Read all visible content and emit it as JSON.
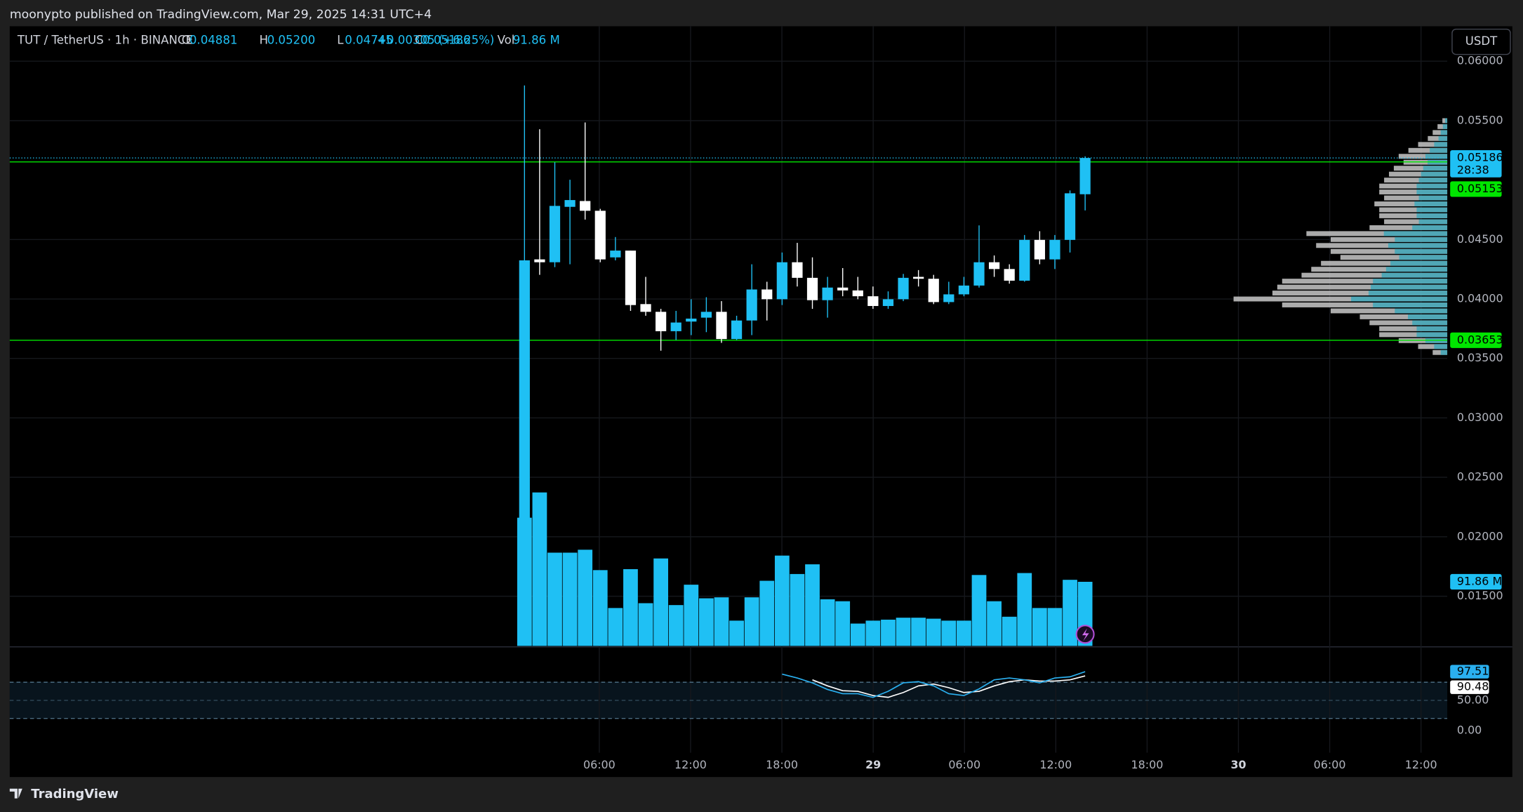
{
  "page": {
    "publisher": "moonypto published on TradingView.com, Mar 29, 2025 14:31 UTC+4",
    "brand": "TradingView",
    "currency_button": "USDT"
  },
  "chart_data": {
    "type": "candlestick",
    "symbol": "TUT / TetherUS · 1h · BINANCE",
    "ohlc_labels": [
      {
        "key": "O",
        "label": "0.04881"
      },
      {
        "key": "H",
        "label": "0.05200"
      },
      {
        "key": "L",
        "label": "0.04745"
      },
      {
        "key": "C",
        "label": "0.05186"
      }
    ],
    "change_label": "+0.00305 (+6.25%)",
    "volume_key": "Vol",
    "volume_label": "91.86 M",
    "last_price_label": "0.05186",
    "countdown": "28:38",
    "up_color": "#1fc0f4",
    "down_color": "#ffffff",
    "open": [
      0.011,
      0.04333,
      0.04309,
      0.04775,
      0.04824,
      0.04742,
      0.0435,
      0.04407,
      0.03957,
      0.03892,
      0.03729,
      0.0381,
      0.03843,
      0.03892,
      0.03663,
      0.03819,
      0.0408,
      0.03998,
      0.04309,
      0.04178,
      0.0399,
      0.04096,
      0.04072,
      0.04023,
      0.03941,
      0.03998,
      0.04186,
      0.0417,
      0.03974,
      0.04039,
      0.04113,
      0.04309,
      0.04252,
      0.04154,
      0.04497,
      0.04333,
      0.04497,
      0.04881
    ],
    "high": [
      0.05796,
      0.05428,
      0.0515,
      0.05003,
      0.05485,
      0.04758,
      0.04521,
      0.04407,
      0.04186,
      0.03917,
      0.039,
      0.03998,
      0.04015,
      0.03982,
      0.03859,
      0.04292,
      0.04145,
      0.04391,
      0.04472,
      0.0435,
      0.04186,
      0.0426,
      0.04186,
      0.04105,
      0.04064,
      0.04211,
      0.04243,
      0.04203,
      0.04145,
      0.04186,
      0.04619,
      0.04366,
      0.04292,
      0.04538,
      0.0457,
      0.04538,
      0.04913,
      0.052
    ],
    "low": [
      0.011,
      0.04203,
      0.04268,
      0.04292,
      0.04668,
      0.04309,
      0.04325,
      0.039,
      0.03859,
      0.03565,
      0.03655,
      0.03696,
      0.03721,
      0.03631,
      0.03655,
      0.03696,
      0.03819,
      0.03949,
      0.04105,
      0.03917,
      0.03843,
      0.04023,
      0.03998,
      0.03917,
      0.03917,
      0.03982,
      0.04105,
      0.03957,
      0.03957,
      0.04023,
      0.04096,
      0.04186,
      0.04129,
      0.04145,
      0.04292,
      0.04252,
      0.04391,
      0.04745
    ],
    "close": [
      0.04325,
      0.04309,
      0.04783,
      0.04832,
      0.04742,
      0.04333,
      0.04407,
      0.03949,
      0.03892,
      0.03729,
      0.03802,
      0.03835,
      0.03892,
      0.03663,
      0.03819,
      0.0408,
      0.03998,
      0.04309,
      0.04178,
      0.0399,
      0.04096,
      0.04072,
      0.04023,
      0.03941,
      0.03998,
      0.04178,
      0.0417,
      0.03974,
      0.04039,
      0.04113,
      0.04309,
      0.04252,
      0.04154,
      0.04497,
      0.04333,
      0.04497,
      0.04889,
      0.05186
    ],
    "volumes": [
      183.7,
      219.9,
      133.6,
      133.6,
      137.8,
      108.6,
      54.3,
      110.0,
      61.2,
      125.3,
      58.5,
      87.7,
      68.2,
      69.6,
      36.2,
      69.6,
      93.3,
      129.4,
      103.0,
      116.9,
      66.8,
      64.0,
      32.0,
      36.2,
      37.6,
      40.4,
      40.4,
      39.0,
      36.2,
      36.2,
      101.6,
      64.0,
      41.8,
      104.4,
      54.3,
      54.3,
      94.7,
      91.86
    ],
    "ylim": [
      0.01082,
      0.06286
    ],
    "yticks": [
      {
        "value": 0.06,
        "label": "0.06000"
      },
      {
        "value": 0.055,
        "label": "0.05500"
      },
      {
        "value": 0.045,
        "label": "0.04500"
      },
      {
        "value": 0.04,
        "label": "0.04000"
      },
      {
        "value": 0.035,
        "label": "0.03500"
      },
      {
        "value": 0.03,
        "label": "0.03000"
      },
      {
        "value": 0.025,
        "label": "0.02500"
      },
      {
        "value": 0.02,
        "label": "0.02000"
      },
      {
        "value": 0.015,
        "label": "0.01500"
      }
    ],
    "xticks": [
      "06:00",
      "12:00",
      "18:00",
      "29",
      "06:00",
      "12:00",
      "18:00",
      "30",
      "06:00",
      "12:00"
    ],
    "levels": [
      {
        "value": 0.05153,
        "label": "0.05153"
      },
      {
        "value": 0.03653,
        "label": "0.03653"
      }
    ],
    "level_color": "#00e600",
    "grid": true,
    "volume_profile": {
      "prices": [
        0.055,
        0.0545,
        0.054,
        0.0535,
        0.053,
        0.0525,
        0.052,
        0.0515,
        0.051,
        0.0505,
        0.05,
        0.0495,
        0.049,
        0.0485,
        0.048,
        0.0475,
        0.047,
        0.0465,
        0.046,
        0.0455,
        0.045,
        0.0445,
        0.044,
        0.0435,
        0.043,
        0.0425,
        0.042,
        0.0415,
        0.041,
        0.0405,
        0.04,
        0.0395,
        0.039,
        0.0385,
        0.038,
        0.0375,
        0.037,
        0.0365,
        0.036,
        0.0355
      ],
      "volumes": [
        5,
        10,
        15,
        20,
        30,
        40,
        50,
        45,
        55,
        60,
        65,
        70,
        70,
        65,
        75,
        70,
        70,
        65,
        80,
        145,
        120,
        135,
        120,
        110,
        130,
        140,
        150,
        170,
        175,
        180,
        220,
        170,
        120,
        90,
        80,
        70,
        70,
        50,
        30,
        15
      ]
    },
    "oscillator": {
      "ylim": [
        -77,
        137
      ],
      "yticks": [
        {
          "value": 50,
          "label": "50.00"
        },
        {
          "value": 0,
          "label": "0.00"
        }
      ],
      "levels": [
        80,
        20
      ],
      "k": [
        null,
        null,
        null,
        null,
        null,
        null,
        null,
        null,
        null,
        null,
        null,
        null,
        null,
        null,
        null,
        null,
        null,
        93.5,
        87,
        79,
        68,
        61,
        61,
        55,
        65,
        79,
        81,
        74,
        61,
        58,
        69,
        84,
        87,
        84,
        79,
        87,
        89,
        97.51
      ],
      "d": [
        null,
        null,
        null,
        null,
        null,
        null,
        null,
        null,
        null,
        null,
        null,
        null,
        null,
        null,
        null,
        null,
        null,
        null,
        null,
        84,
        74,
        66,
        65,
        58,
        55,
        63,
        74,
        77,
        71,
        63,
        65,
        74,
        81,
        84,
        82,
        82,
        84,
        90.48
      ],
      "k_label": "97.51",
      "d_label": "90.48",
      "k_color": "#2ab0f0",
      "d_color": "#ffffff"
    }
  }
}
